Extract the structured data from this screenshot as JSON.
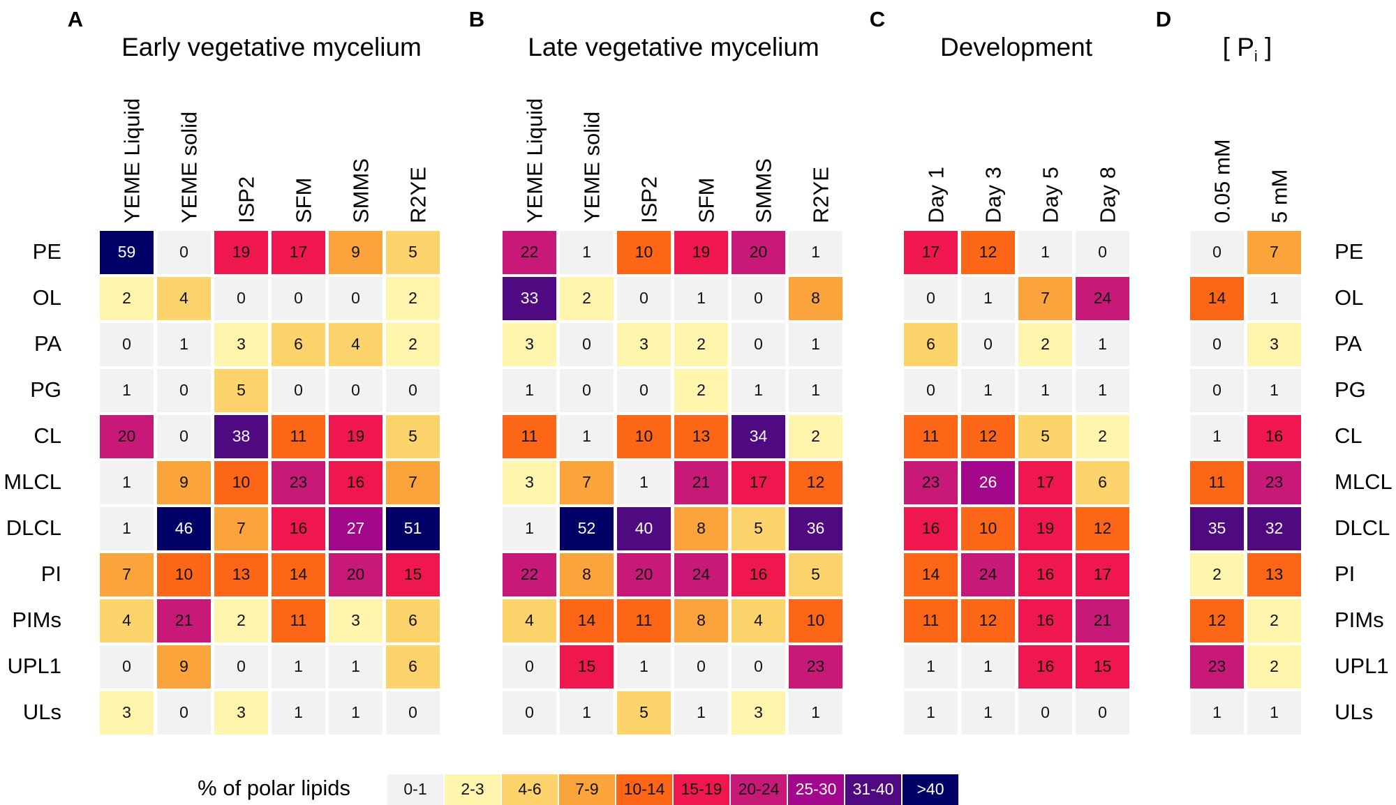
{
  "chart_data": {
    "type": "heatmap",
    "lipids": [
      "PE",
      "OL",
      "PA",
      "PG",
      "CL",
      "MLCL",
      "DLCL",
      "PI",
      "PIMs",
      "UPL1",
      "ULs"
    ],
    "panels": [
      {
        "letter": "A",
        "title": "Early vegetative mycelium",
        "columns": [
          "YEME Liquid",
          "YEME solid",
          "ISP2",
          "SFM",
          "SMMS",
          "R2YE"
        ],
        "values": [
          [
            59,
            0,
            19,
            17,
            9,
            5
          ],
          [
            2,
            4,
            0,
            0,
            0,
            2
          ],
          [
            0,
            1,
            3,
            6,
            4,
            2
          ],
          [
            1,
            0,
            5,
            0,
            0,
            0
          ],
          [
            20,
            0,
            38,
            11,
            19,
            5
          ],
          [
            1,
            9,
            10,
            23,
            16,
            7
          ],
          [
            1,
            46,
            7,
            16,
            27,
            51
          ],
          [
            7,
            10,
            13,
            14,
            20,
            15
          ],
          [
            4,
            21,
            2,
            11,
            3,
            6
          ],
          [
            0,
            9,
            0,
            1,
            1,
            6
          ],
          [
            3,
            0,
            3,
            1,
            1,
            0
          ]
        ]
      },
      {
        "letter": "B",
        "title": "Late vegetative mycelium",
        "columns": [
          "YEME Liquid",
          "YEME solid",
          "ISP2",
          "SFM",
          "SMMS",
          "R2YE"
        ],
        "values": [
          [
            22,
            1,
            10,
            19,
            20,
            1
          ],
          [
            33,
            2,
            0,
            1,
            0,
            8
          ],
          [
            3,
            0,
            3,
            2,
            0,
            1
          ],
          [
            1,
            0,
            0,
            2,
            1,
            1
          ],
          [
            11,
            1,
            10,
            13,
            34,
            2
          ],
          [
            3,
            7,
            1,
            21,
            17,
            12
          ],
          [
            1,
            52,
            40,
            8,
            5,
            36
          ],
          [
            22,
            8,
            20,
            24,
            16,
            5
          ],
          [
            4,
            14,
            11,
            8,
            4,
            10
          ],
          [
            0,
            15,
            1,
            0,
            0,
            23
          ],
          [
            0,
            1,
            5,
            1,
            3,
            1
          ]
        ]
      },
      {
        "letter": "C",
        "title": "Development",
        "columns": [
          "Day 1",
          "Day 3",
          "Day 5",
          "Day 8"
        ],
        "values": [
          [
            17,
            12,
            1,
            0
          ],
          [
            0,
            1,
            7,
            24
          ],
          [
            6,
            0,
            2,
            1
          ],
          [
            0,
            1,
            1,
            1
          ],
          [
            11,
            12,
            5,
            2
          ],
          [
            23,
            26,
            17,
            6
          ],
          [
            16,
            10,
            19,
            12
          ],
          [
            14,
            24,
            16,
            17
          ],
          [
            11,
            12,
            16,
            21
          ],
          [
            1,
            1,
            16,
            15
          ],
          [
            1,
            1,
            0,
            0
          ]
        ]
      },
      {
        "letter": "D",
        "title": "[ P",
        "title_subscript": "i",
        "title_close": " ]",
        "columns": [
          "0.05 mM",
          "5 mM"
        ],
        "values": [
          [
            0,
            7
          ],
          [
            14,
            1
          ],
          [
            0,
            3
          ],
          [
            0,
            1
          ],
          [
            1,
            16
          ],
          [
            11,
            23
          ],
          [
            35,
            32
          ],
          [
            2,
            13
          ],
          [
            12,
            2
          ],
          [
            23,
            2
          ],
          [
            1,
            1
          ]
        ]
      }
    ],
    "legend": {
      "title": "% of polar lipids",
      "bins": [
        {
          "label": "0-1",
          "min": 0,
          "max": 1,
          "color": "#f2f2f2",
          "text_color": "#111111"
        },
        {
          "label": "2-3",
          "min": 2,
          "max": 3,
          "color": "#fff5ac",
          "text_color": "#111111"
        },
        {
          "label": "4-6",
          "min": 4,
          "max": 6,
          "color": "#fdd46b",
          "text_color": "#111111"
        },
        {
          "label": "7-9",
          "min": 7,
          "max": 9,
          "color": "#fca43c",
          "text_color": "#111111"
        },
        {
          "label": "10-14",
          "min": 10,
          "max": 14,
          "color": "#fd6616",
          "text_color": "#111111"
        },
        {
          "label": "15-19",
          "min": 15,
          "max": 19,
          "color": "#f0174e",
          "text_color": "#111111"
        },
        {
          "label": "20-24",
          "min": 20,
          "max": 24,
          "color": "#c81979",
          "text_color": "#111111"
        },
        {
          "label": "25-30",
          "min": 25,
          "max": 30,
          "color": "#a3078c",
          "text_color": "#ffffff"
        },
        {
          "label": "31-40",
          "min": 31,
          "max": 40,
          "color": "#4f0a82",
          "text_color": "#ffffff"
        },
        {
          "label": ">40",
          "min": 41,
          "max": 100,
          "color": "#000066",
          "text_color": "#ffffff"
        }
      ]
    }
  }
}
